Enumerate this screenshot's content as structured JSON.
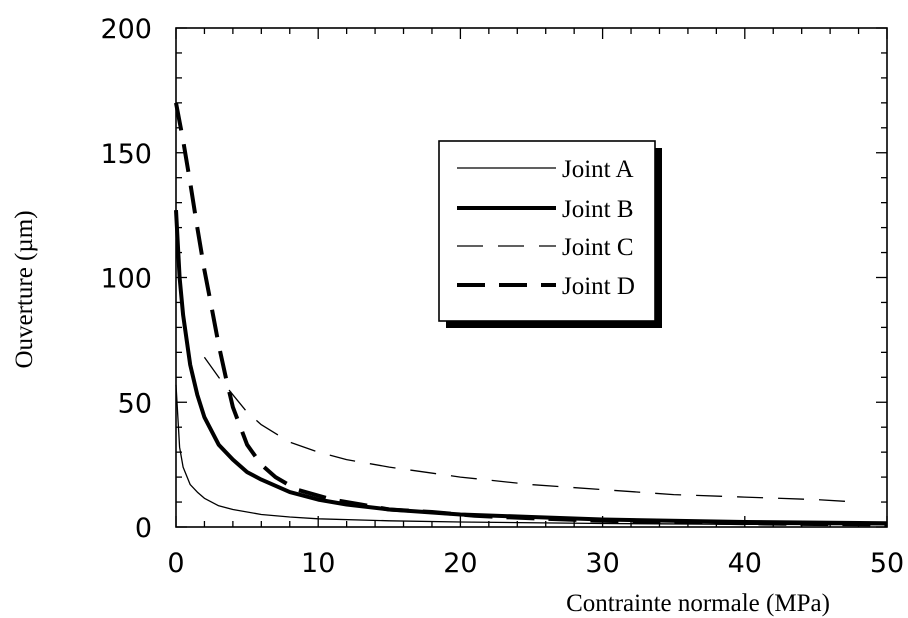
{
  "chart_data": {
    "type": "line",
    "title": "",
    "xlabel": "Contrainte normale (MPa)",
    "ylabel": "Ouverture (µm)",
    "xlim": [
      0,
      50
    ],
    "ylim": [
      0,
      200
    ],
    "xticks": [
      0,
      10,
      20,
      30,
      40,
      50
    ],
    "yticks": [
      0,
      50,
      100,
      150,
      200
    ],
    "grid": false,
    "legend_position": "upper-right",
    "series": [
      {
        "name": "Joint A",
        "style": "thin-solid",
        "x": [
          0,
          0.25,
          0.5,
          1,
          1.5,
          2,
          3,
          4,
          6,
          8,
          10,
          15,
          20,
          30,
          40,
          50
        ],
        "y": [
          57,
          32,
          24,
          17,
          14,
          11.5,
          8.5,
          7,
          5,
          4,
          3.3,
          2.5,
          2,
          1.4,
          1.1,
          0.9
        ]
      },
      {
        "name": "Joint B",
        "style": "thick-solid",
        "x": [
          0,
          0.25,
          0.5,
          1,
          1.5,
          2,
          3,
          4,
          5,
          6,
          8,
          10,
          12,
          15,
          20,
          25,
          30,
          40,
          50
        ],
        "y": [
          127,
          100,
          85,
          65,
          53,
          44,
          33,
          27,
          22,
          19,
          14,
          11,
          9,
          7,
          5,
          4,
          3,
          2,
          1.5
        ]
      },
      {
        "name": "Joint C",
        "style": "thin-dashed",
        "x": [
          2,
          3,
          4,
          5,
          6,
          8,
          10,
          12,
          15,
          20,
          25,
          30,
          35,
          40,
          45,
          48
        ],
        "y": [
          68,
          60,
          53,
          46,
          41,
          34,
          30,
          27,
          24,
          20,
          17,
          15,
          13,
          12,
          11,
          10
        ]
      },
      {
        "name": "Joint D",
        "style": "thick-dashed",
        "x": [
          0,
          0.5,
          1,
          1.5,
          2,
          2.5,
          3,
          3.5,
          4,
          5,
          6,
          7,
          8.5,
          11,
          13,
          15,
          18,
          21,
          25,
          30,
          35,
          40,
          45,
          50
        ],
        "y": [
          170,
          155,
          138,
          120,
          103,
          88,
          73,
          60,
          48,
          33,
          25,
          20,
          15,
          11,
          9,
          7,
          6,
          4.5,
          3.5,
          2.5,
          2,
          1.5,
          1.2,
          1
        ]
      }
    ]
  }
}
